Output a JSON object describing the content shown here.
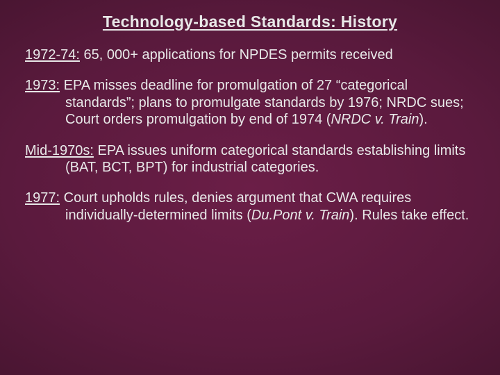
{
  "slide": {
    "title": "Technology-based Standards: History",
    "background": {
      "gradient_inner": "#6b1e47",
      "gradient_mid": "#5a1a3d",
      "gradient_outer": "#3d1229",
      "gradient_edge": "#1a0811"
    },
    "text_color": "#e8e8e8",
    "title_fontsize": 23,
    "body_fontsize": 20,
    "bullets": [
      {
        "date": "1972-74:",
        "text_before_italic": "  65, 000+ applications for NPDES permits received",
        "italic": "",
        "text_after_italic": ""
      },
      {
        "date": "1973:",
        "text_before_italic": "  EPA misses deadline for promulgation of 27 “categorical standards”; plans to promulgate standards by 1976;  NRDC sues; Court orders promulgation by end of 1974 (",
        "italic": "NRDC v. Train",
        "text_after_italic": ")."
      },
      {
        "date": "Mid-1970s:",
        "text_before_italic": "  EPA issues uniform categorical standards establishing limits (BAT, BCT, BPT) for industrial categories.",
        "italic": "",
        "text_after_italic": ""
      },
      {
        "date": "1977:",
        "text_before_italic": "  Court upholds rules, denies argument that CWA requires individually-determined limits (",
        "italic": "Du.Pont v. Train",
        "text_after_italic": ").  Rules take effect."
      }
    ]
  }
}
